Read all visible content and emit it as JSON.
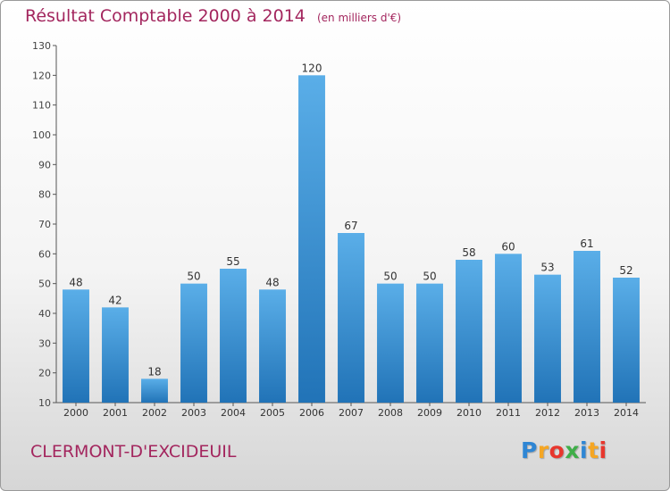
{
  "header": {
    "title": "Résultat Comptable 2000 à 2014",
    "unit": "(en milliers d'€)"
  },
  "footer": {
    "commune": "CLERMONT-D'EXCIDEUIL",
    "logo_letters": [
      "P",
      "r",
      "o",
      "x",
      "i",
      "t",
      "i"
    ],
    "logo_colors": [
      "#2f86d4",
      "#f5a623",
      "#e8362d",
      "#3fae49",
      "#2f86d4",
      "#f5a623",
      "#e8362d"
    ]
  },
  "chart_data": {
    "type": "bar",
    "categories": [
      "2000",
      "2001",
      "2002",
      "2003",
      "2004",
      "2005",
      "2006",
      "2007",
      "2008",
      "2009",
      "2010",
      "2011",
      "2012",
      "2013",
      "2014"
    ],
    "values": [
      48,
      42,
      18,
      50,
      55,
      48,
      120,
      67,
      50,
      50,
      58,
      60,
      53,
      61,
      52
    ],
    "title": "Résultat Comptable 2000 à 2014",
    "subtitle": "(en milliers d'€)",
    "xlabel": "",
    "ylabel": "",
    "ylim": [
      10,
      130
    ],
    "yticks": [
      10,
      20,
      30,
      40,
      50,
      60,
      70,
      80,
      90,
      100,
      110,
      120,
      130
    ],
    "grid": false,
    "legend": "none",
    "bar_color": "#3b8fd4",
    "title_color": "#a3265e"
  }
}
